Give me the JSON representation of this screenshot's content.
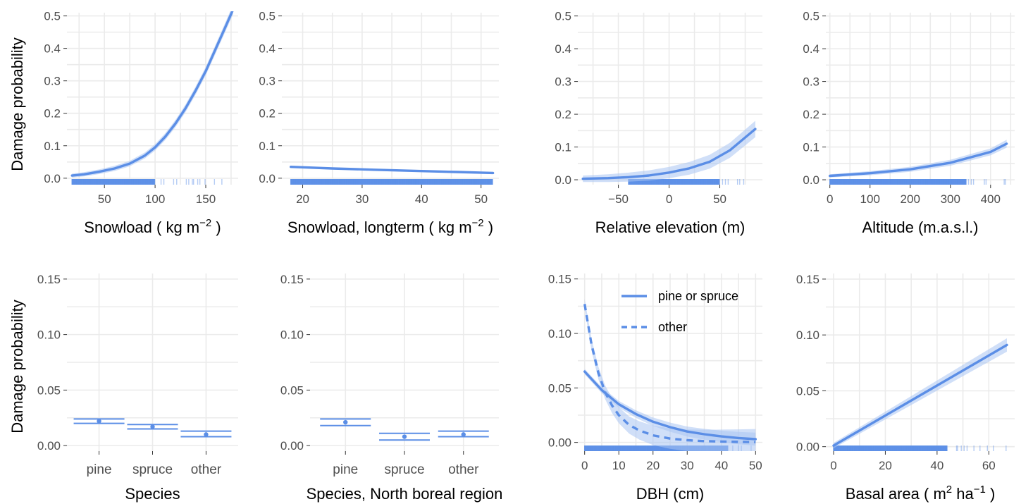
{
  "y_label": "Damage probability",
  "colors": {
    "line": "#5b8ee6",
    "band": "#a9c4f2",
    "rug": "#5b8ee6"
  },
  "chart_data": [
    {
      "type": "line",
      "xlabel": "Snowload ( kg m",
      "xlabel_sup": "−2",
      "xlabel_tail": " )",
      "xlim": [
        13,
        182
      ],
      "ylim": [
        -0.02,
        0.51
      ],
      "xticks": [
        50,
        100,
        150
      ],
      "yticks": [
        0.0,
        0.1,
        0.2,
        0.3,
        0.4,
        0.5
      ],
      "show_ylabel": true,
      "series": [
        {
          "style": "solid",
          "x": [
            18,
            30,
            45,
            60,
            75,
            90,
            100,
            110,
            120,
            130,
            140,
            150,
            160,
            170,
            177
          ],
          "y": [
            0.008,
            0.012,
            0.02,
            0.03,
            0.045,
            0.07,
            0.095,
            0.128,
            0.168,
            0.215,
            0.27,
            0.33,
            0.4,
            0.47,
            0.52
          ],
          "band": 0.015
        }
      ],
      "rug": [
        [
          18,
          100,
          1
        ],
        [
          100,
          175,
          0.3
        ]
      ]
    },
    {
      "type": "line",
      "xlabel": "Snowload, longterm ( kg m",
      "xlabel_sup": "−2",
      "xlabel_tail": " )",
      "xlim": [
        16.5,
        53
      ],
      "ylim": [
        -0.02,
        0.51
      ],
      "xticks": [
        20,
        30,
        40,
        50
      ],
      "yticks": [
        0.0,
        0.1,
        0.2,
        0.3,
        0.4,
        0.5
      ],
      "show_ylabel": false,
      "series": [
        {
          "style": "solid",
          "x": [
            18,
            25,
            32,
            40,
            46,
            52
          ],
          "y": [
            0.035,
            0.03,
            0.026,
            0.022,
            0.019,
            0.016
          ],
          "band": 0.003
        }
      ],
      "rug": [
        [
          18,
          52,
          1
        ]
      ]
    },
    {
      "type": "line",
      "xlabel": "Relative elevation (m)",
      "xlabel_sup": "",
      "xlabel_tail": "",
      "xlim": [
        -90,
        92
      ],
      "ylim": [
        -0.015,
        0.51
      ],
      "xticks": [
        -50,
        0,
        50
      ],
      "yticks": [
        0.0,
        0.1,
        0.2,
        0.3,
        0.4,
        0.5
      ],
      "show_ylabel": false,
      "series": [
        {
          "style": "solid",
          "x": [
            -85,
            -60,
            -40,
            -20,
            0,
            20,
            40,
            60,
            85
          ],
          "y": [
            0.003,
            0.005,
            0.008,
            0.013,
            0.022,
            0.035,
            0.055,
            0.09,
            0.155
          ],
          "band": 0.025
        }
      ],
      "rug": [
        [
          -40,
          50,
          1
        ],
        [
          50,
          85,
          0.3
        ]
      ]
    },
    {
      "type": "line",
      "xlabel": "Altitude (m.a.s.l.)",
      "xlabel_sup": "",
      "xlabel_tail": "",
      "xlim": [
        -10,
        460
      ],
      "ylim": [
        -0.015,
        0.51
      ],
      "xticks": [
        0,
        100,
        200,
        300,
        400
      ],
      "yticks": [
        0.0,
        0.1,
        0.2,
        0.3,
        0.4,
        0.5
      ],
      "show_ylabel": false,
      "series": [
        {
          "style": "solid",
          "x": [
            0,
            100,
            200,
            300,
            400,
            440
          ],
          "y": [
            0.012,
            0.02,
            0.032,
            0.052,
            0.085,
            0.11
          ],
          "band": 0.012
        }
      ],
      "rug": [
        [
          0,
          340,
          1
        ],
        [
          340,
          440,
          0.3
        ]
      ]
    },
    {
      "type": "errorbar",
      "xlabel": "Species",
      "xlabel_sup": "",
      "xlabel_tail": "",
      "categories": [
        "pine",
        "spruce",
        "other"
      ],
      "ylim": [
        -0.005,
        0.155
      ],
      "yticks": [
        0.0,
        0.05,
        0.1,
        0.15
      ],
      "ytick_labels": [
        "0.00",
        "0.05",
        "0.10",
        "0.15"
      ],
      "show_ylabel": true,
      "points": [
        {
          "y": 0.022,
          "lo": 0.02,
          "hi": 0.024
        },
        {
          "y": 0.017,
          "lo": 0.015,
          "hi": 0.019
        },
        {
          "y": 0.01,
          "lo": 0.008,
          "hi": 0.013
        }
      ]
    },
    {
      "type": "errorbar",
      "xlabel": "Species, North boreal region",
      "xlabel_sup": "",
      "xlabel_tail": "",
      "categories": [
        "pine",
        "spruce",
        "other"
      ],
      "ylim": [
        -0.005,
        0.155
      ],
      "yticks": [
        0.0,
        0.05,
        0.1,
        0.15
      ],
      "ytick_labels": [
        "0.00",
        "0.05",
        "0.10",
        "0.15"
      ],
      "show_ylabel": false,
      "points": [
        {
          "y": 0.021,
          "lo": 0.018,
          "hi": 0.024
        },
        {
          "y": 0.008,
          "lo": 0.005,
          "hi": 0.011
        },
        {
          "y": 0.01,
          "lo": 0.008,
          "hi": 0.013
        }
      ]
    },
    {
      "type": "line",
      "xlabel": "DBH (cm)",
      "xlabel_sup": "",
      "xlabel_tail": "",
      "xlim": [
        -2,
        52
      ],
      "ylim": [
        -0.008,
        0.155
      ],
      "xticks": [
        0,
        10,
        20,
        30,
        40,
        50
      ],
      "yticks": [
        0.0,
        0.05,
        0.1,
        0.15
      ],
      "ytick_labels": [
        "0.00",
        "0.05",
        "0.10",
        "0.15"
      ],
      "show_ylabel": false,
      "legend": [
        {
          "label": "pine or spruce",
          "style": "solid"
        },
        {
          "label": "other",
          "style": "dashed"
        }
      ],
      "series": [
        {
          "style": "solid",
          "x": [
            0,
            5,
            10,
            15,
            20,
            25,
            30,
            35,
            40,
            45,
            50
          ],
          "y": [
            0.065,
            0.048,
            0.035,
            0.026,
            0.019,
            0.014,
            0.01,
            0.0075,
            0.0055,
            0.004,
            0.003
          ],
          "band": 0.006
        },
        {
          "style": "dashed",
          "x": [
            0,
            2,
            4,
            6,
            8,
            10,
            13,
            16,
            20,
            25,
            30,
            35,
            40,
            45,
            50
          ],
          "y": [
            0.127,
            0.09,
            0.064,
            0.046,
            0.034,
            0.025,
            0.016,
            0.011,
            0.0065,
            0.0035,
            0.002,
            0.0012,
            0.0008,
            0.0005,
            0.0003
          ],
          "band": 0.012
        }
      ],
      "rug": [
        [
          0,
          42,
          1
        ],
        [
          42,
          49,
          0.4
        ]
      ]
    },
    {
      "type": "line",
      "xlabel": "Basal area ( m",
      "xlabel_sup": "2",
      "xlabel_tail": " ha",
      "xlabel_sup2": "−1",
      "xlabel_tail2": " )",
      "xlim": [
        -3,
        70
      ],
      "ylim": [
        -0.004,
        0.155
      ],
      "xticks": [
        0,
        20,
        40,
        60
      ],
      "yticks": [
        0.0,
        0.05,
        0.1,
        0.15
      ],
      "ytick_labels": [
        "0.00",
        "0.05",
        "0.10",
        "0.15"
      ],
      "show_ylabel": false,
      "series": [
        {
          "style": "solid",
          "x": [
            0,
            67
          ],
          "y": [
            0.001,
            0.091
          ],
          "band": 0.006
        }
      ],
      "rug": [
        [
          0,
          44,
          1
        ],
        [
          44,
          67,
          0.3
        ]
      ]
    }
  ]
}
